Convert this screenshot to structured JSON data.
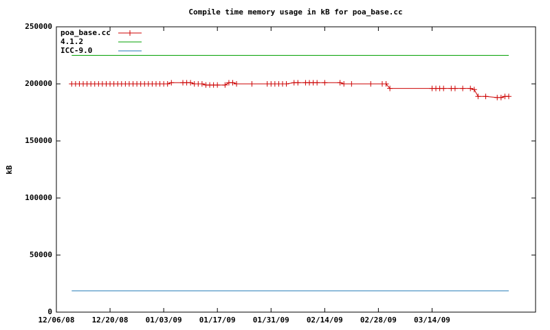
{
  "chart_data": {
    "type": "line",
    "title": "Compile time memory usage in kB for poa_base.cc",
    "y_label": "kB",
    "xlim": [
      "12/06/08",
      "04/10/09"
    ],
    "xticks": [
      "12/06/08",
      "12/20/08",
      "01/03/09",
      "01/17/09",
      "01/31/09",
      "02/14/09",
      "02/28/09",
      "03/14/09"
    ],
    "ylim": [
      0,
      250000
    ],
    "yticks": [
      0,
      50000,
      100000,
      150000,
      200000,
      250000
    ],
    "legend": "top-left",
    "series": [
      {
        "name": "poa_base.cc",
        "color": "#cc0000",
        "marker": "plus",
        "x": [
          "12/10/08",
          "12/11/08",
          "12/12/08",
          "12/13/08",
          "12/14/08",
          "12/15/08",
          "12/16/08",
          "12/17/08",
          "12/18/08",
          "12/19/08",
          "12/20/08",
          "12/21/08",
          "12/22/08",
          "12/23/08",
          "12/24/08",
          "12/25/08",
          "12/26/08",
          "12/27/08",
          "12/28/08",
          "12/29/08",
          "12/30/08",
          "12/31/08",
          "01/01/09",
          "01/02/09",
          "01/03/09",
          "01/04/09",
          "01/05/09",
          "01/08/09",
          "01/09/09",
          "01/10/09",
          "01/11/09",
          "01/12/09",
          "01/13/09",
          "01/14/09",
          "01/15/09",
          "01/16/09",
          "01/17/09",
          "01/19/09",
          "01/20/09",
          "01/21/09",
          "01/22/09",
          "01/26/09",
          "01/30/09",
          "01/31/09",
          "02/01/09",
          "02/02/09",
          "02/03/09",
          "02/04/09",
          "02/06/09",
          "02/07/09",
          "02/09/09",
          "02/10/09",
          "02/11/09",
          "02/12/09",
          "02/14/09",
          "02/18/09",
          "02/19/09",
          "02/21/09",
          "02/26/09",
          "03/01/09",
          "03/02/09",
          "03/03/09",
          "03/14/09",
          "03/15/09",
          "03/16/09",
          "03/17/09",
          "03/19/09",
          "03/20/09",
          "03/22/09",
          "03/24/09",
          "03/25/09",
          "03/26/09",
          "03/28/09",
          "03/31/09",
          "04/01/09",
          "04/02/09",
          "04/03/09"
        ],
        "values": [
          200000,
          200000,
          200000,
          200000,
          200000,
          200000,
          200000,
          200000,
          200000,
          200000,
          200000,
          200000,
          200000,
          200000,
          200000,
          200000,
          200000,
          200000,
          200000,
          200000,
          200000,
          200000,
          200000,
          200000,
          200000,
          200000,
          201000,
          201000,
          201000,
          201000,
          200000,
          200000,
          200000,
          199000,
          199000,
          199000,
          199000,
          199000,
          201000,
          201000,
          200000,
          200000,
          200000,
          200000,
          200000,
          200000,
          200000,
          200000,
          201000,
          201000,
          201000,
          201000,
          201000,
          201000,
          201000,
          201000,
          200000,
          200000,
          200000,
          200000,
          200000,
          196000,
          196000,
          196000,
          196000,
          196000,
          196000,
          196000,
          196000,
          196000,
          195000,
          189000,
          189000,
          188000,
          188000,
          189000,
          189000
        ]
      },
      {
        "name": "4.1.2",
        "color": "#00a000",
        "x": [
          "12/10/08",
          "04/03/09"
        ],
        "values": [
          225000,
          225000
        ]
      },
      {
        "name": "ICC-9.0",
        "color": "#1f78b4",
        "x": [
          "12/10/08",
          "04/03/09"
        ],
        "values": [
          18700,
          18700
        ]
      }
    ]
  }
}
